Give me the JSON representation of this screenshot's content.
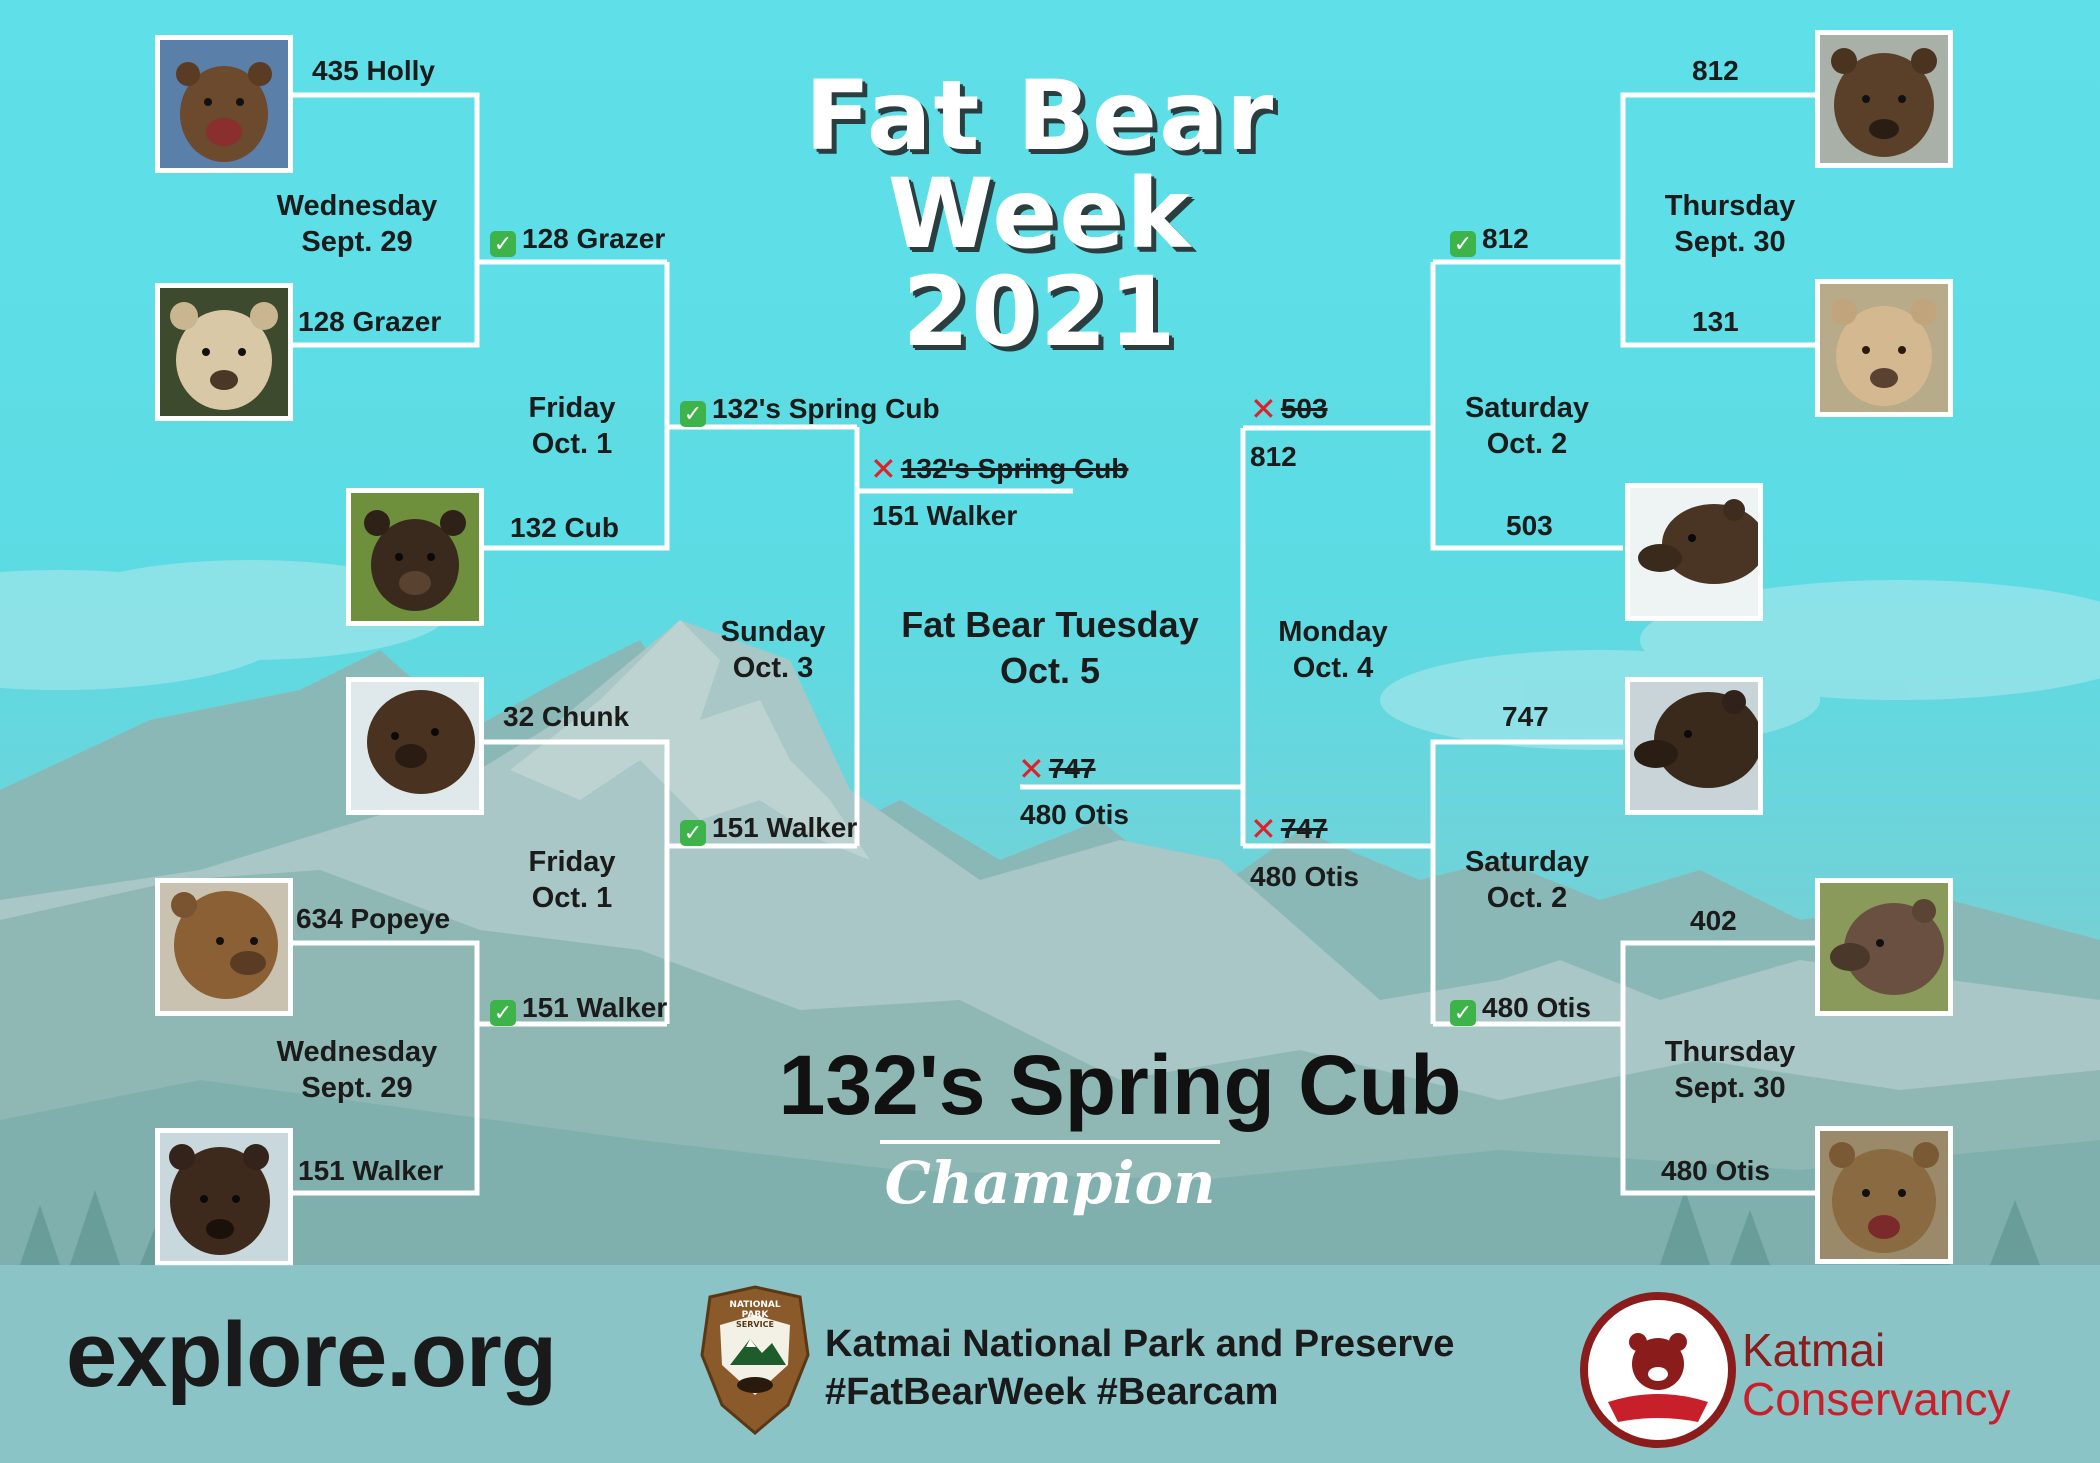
{
  "title": {
    "line1": "Fat Bear",
    "line2": "Week",
    "line3": "2021"
  },
  "final": {
    "label": "Fat Bear Tuesday",
    "date": "Oct. 5"
  },
  "dates": {
    "wed_top": [
      "Wednesday",
      "Sept. 29"
    ],
    "fri_top": [
      "Friday",
      "Oct. 1"
    ],
    "sun": [
      "Sunday",
      "Oct. 3"
    ],
    "fri_bottom": [
      "Friday",
      "Oct. 1"
    ],
    "wed_bottom": [
      "Wednesday",
      "Sept. 29"
    ],
    "thu_top": [
      "Thursday",
      "Sept. 30"
    ],
    "sat_top": [
      "Saturday",
      "Oct. 2"
    ],
    "mon": [
      "Monday",
      "Oct. 4"
    ],
    "sat_bottom": [
      "Saturday",
      "Oct. 2"
    ],
    "thu_bottom": [
      "Thursday",
      "Sept. 30"
    ]
  },
  "bears": {
    "holly": "435 Holly",
    "grazer": "128 Grazer",
    "cub": "132 Cub",
    "chunk": "32 Chunk",
    "popeye": "634 Popeye",
    "walker": "151 Walker",
    "b812": "812",
    "b131": "131",
    "b503": "503",
    "b747": "747",
    "b402": "402",
    "otis": "480 Otis"
  },
  "results": {
    "grazer_win": "128 Grazer",
    "spring_cub_win": "132's Spring Cub",
    "walker_win_sf": "151 Walker",
    "walker_win_qf": "151 Walker",
    "spring_cub_lost": "132's Spring Cub",
    "walker_sun": "151 Walker",
    "b812_win": "812",
    "b503_lost": "503",
    "b812_mon": "812",
    "b747_lost_mon": "747",
    "otis_mon": "480 Otis",
    "otis_win": "480 Otis",
    "b747_lost_final": "747",
    "otis_final": "480 Otis"
  },
  "champion": {
    "name": "132's Spring Cub",
    "label": "Champion"
  },
  "footer": {
    "explore": "explore.org",
    "park": "Katmai National Park and Preserve",
    "tags": "#FatBearWeek #Bearcam",
    "nps_text": [
      "NATIONAL",
      "PARK",
      "SERVICE"
    ],
    "katmai": [
      "Katmai",
      "Conservancy"
    ]
  },
  "icons": {
    "check": "check-box-icon",
    "cross": "cross-icon"
  },
  "colors": {
    "sky": "#5fe0e8",
    "check": "#3db34a",
    "cross": "#e0202a",
    "conservancy": "#c8202a"
  }
}
